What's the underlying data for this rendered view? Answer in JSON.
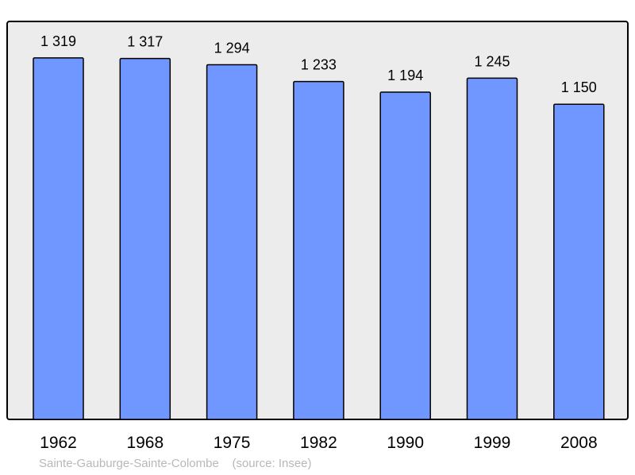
{
  "chart_data": {
    "type": "bar",
    "categories": [
      "1962",
      "1968",
      "1975",
      "1982",
      "1990",
      "1999",
      "2008"
    ],
    "values": [
      1319,
      1317,
      1294,
      1233,
      1194,
      1245,
      1150
    ],
    "value_labels": [
      "1 319",
      "1 317",
      "1 294",
      "1 233",
      "1 194",
      "1 245",
      "1 150"
    ],
    "title": "",
    "xlabel": "",
    "ylabel": "",
    "ylim": [
      0,
      1452
    ],
    "grid": false,
    "bar_color": "#7096ff",
    "background_color": "#ececec"
  },
  "footer": {
    "commune": "Sainte-Gauburge-Sainte-Colombe",
    "source": "(source: Insee)"
  }
}
